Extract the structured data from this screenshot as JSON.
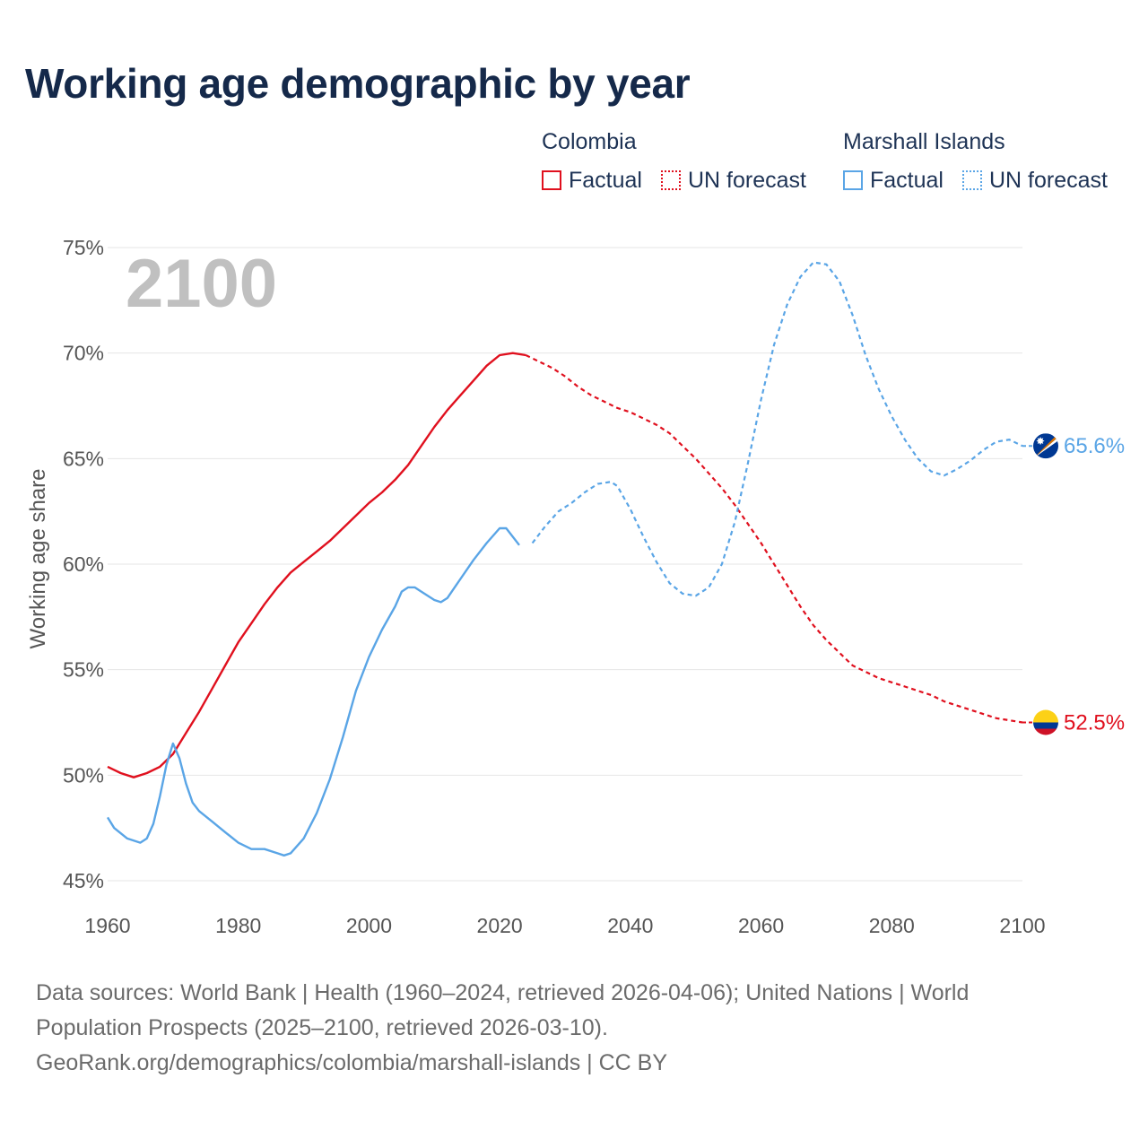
{
  "title": "Working age demographic by year",
  "legend": {
    "groups": [
      {
        "name": "Colombia",
        "factual": "Factual",
        "forecast": "UN forecast"
      },
      {
        "name": "Marshall Islands",
        "factual": "Factual",
        "forecast": "UN forecast"
      }
    ]
  },
  "colors": {
    "colombia": "#e0101e",
    "marshall": "#5aa5e6",
    "grid": "#e6e6e6"
  },
  "footer": {
    "line1": "Data sources: World Bank | Health (1960–2024, retrieved 2026-04-06); United Nations | World",
    "line2": "Population Prospects (2025–2100, retrieved 2026-03-10).",
    "line3": "GeoRank.org/demographics/colombia/marshall-islands | CC BY"
  },
  "chart_data": {
    "type": "line",
    "title": "Working age demographic by year",
    "current_year_label": "2100",
    "xlabel": "",
    "ylabel": "Working age share",
    "xlim": [
      1960,
      2100
    ],
    "ylim": [
      45,
      75
    ],
    "x_ticks": [
      1960,
      1980,
      2000,
      2020,
      2040,
      2060,
      2080,
      2100
    ],
    "y_ticks": [
      45,
      50,
      55,
      60,
      65,
      70,
      75
    ],
    "y_tick_labels": [
      "45%",
      "50%",
      "55%",
      "60%",
      "65%",
      "70%",
      "75%"
    ],
    "forecast_start": 2024,
    "series": [
      {
        "name": "Colombia",
        "end_label": "52.5%",
        "flag": "colombia-flag",
        "points": [
          [
            1960,
            50.4
          ],
          [
            1962,
            50.1
          ],
          [
            1964,
            49.9
          ],
          [
            1966,
            50.1
          ],
          [
            1968,
            50.4
          ],
          [
            1970,
            51.0
          ],
          [
            1972,
            52.0
          ],
          [
            1974,
            53.0
          ],
          [
            1976,
            54.1
          ],
          [
            1978,
            55.2
          ],
          [
            1980,
            56.3
          ],
          [
            1982,
            57.2
          ],
          [
            1984,
            58.1
          ],
          [
            1986,
            58.9
          ],
          [
            1988,
            59.6
          ],
          [
            1990,
            60.1
          ],
          [
            1992,
            60.6
          ],
          [
            1994,
            61.1
          ],
          [
            1996,
            61.7
          ],
          [
            1998,
            62.3
          ],
          [
            2000,
            62.9
          ],
          [
            2002,
            63.4
          ],
          [
            2004,
            64.0
          ],
          [
            2006,
            64.7
          ],
          [
            2008,
            65.6
          ],
          [
            2010,
            66.5
          ],
          [
            2012,
            67.3
          ],
          [
            2014,
            68.0
          ],
          [
            2016,
            68.7
          ],
          [
            2018,
            69.4
          ],
          [
            2020,
            69.9
          ],
          [
            2022,
            70.0
          ],
          [
            2024,
            69.9
          ],
          [
            2026,
            69.6
          ],
          [
            2028,
            69.3
          ],
          [
            2030,
            68.9
          ],
          [
            2032,
            68.4
          ],
          [
            2034,
            68.0
          ],
          [
            2036,
            67.7
          ],
          [
            2038,
            67.4
          ],
          [
            2040,
            67.2
          ],
          [
            2042,
            66.9
          ],
          [
            2044,
            66.6
          ],
          [
            2046,
            66.2
          ],
          [
            2048,
            65.6
          ],
          [
            2050,
            65.0
          ],
          [
            2052,
            64.3
          ],
          [
            2054,
            63.6
          ],
          [
            2056,
            62.8
          ],
          [
            2058,
            61.9
          ],
          [
            2060,
            61.0
          ],
          [
            2062,
            60.0
          ],
          [
            2064,
            59.0
          ],
          [
            2066,
            58.0
          ],
          [
            2068,
            57.1
          ],
          [
            2070,
            56.4
          ],
          [
            2072,
            55.8
          ],
          [
            2074,
            55.2
          ],
          [
            2076,
            54.9
          ],
          [
            2078,
            54.6
          ],
          [
            2080,
            54.4
          ],
          [
            2082,
            54.2
          ],
          [
            2084,
            54.0
          ],
          [
            2086,
            53.8
          ],
          [
            2088,
            53.5
          ],
          [
            2090,
            53.3
          ],
          [
            2092,
            53.1
          ],
          [
            2094,
            52.9
          ],
          [
            2096,
            52.7
          ],
          [
            2098,
            52.6
          ],
          [
            2100,
            52.5
          ]
        ]
      },
      {
        "name": "Marshall Islands",
        "end_label": "65.6%",
        "flag": "marshall-islands-flag",
        "points": [
          [
            1960,
            48.0
          ],
          [
            1961,
            47.5
          ],
          [
            1963,
            47.0
          ],
          [
            1965,
            46.8
          ],
          [
            1966,
            47.0
          ],
          [
            1967,
            47.7
          ],
          [
            1968,
            49.0
          ],
          [
            1969,
            50.5
          ],
          [
            1970,
            51.5
          ],
          [
            1971,
            50.8
          ],
          [
            1972,
            49.6
          ],
          [
            1973,
            48.7
          ],
          [
            1974,
            48.3
          ],
          [
            1976,
            47.8
          ],
          [
            1978,
            47.3
          ],
          [
            1980,
            46.8
          ],
          [
            1982,
            46.5
          ],
          [
            1984,
            46.5
          ],
          [
            1986,
            46.3
          ],
          [
            1987,
            46.2
          ],
          [
            1988,
            46.3
          ],
          [
            1990,
            47.0
          ],
          [
            1992,
            48.2
          ],
          [
            1994,
            49.8
          ],
          [
            1996,
            51.8
          ],
          [
            1998,
            54.0
          ],
          [
            2000,
            55.6
          ],
          [
            2002,
            56.9
          ],
          [
            2004,
            58.0
          ],
          [
            2005,
            58.7
          ],
          [
            2006,
            58.9
          ],
          [
            2007,
            58.9
          ],
          [
            2008,
            58.7
          ],
          [
            2010,
            58.3
          ],
          [
            2011,
            58.2
          ],
          [
            2012,
            58.4
          ],
          [
            2014,
            59.3
          ],
          [
            2016,
            60.2
          ],
          [
            2018,
            61.0
          ],
          [
            2020,
            61.7
          ],
          [
            2021,
            61.7
          ],
          [
            2023,
            60.9
          ],
          [
            2025,
            61.0
          ],
          [
            2027,
            61.8
          ],
          [
            2029,
            62.5
          ],
          [
            2031,
            62.9
          ],
          [
            2033,
            63.4
          ],
          [
            2035,
            63.8
          ],
          [
            2037,
            63.9
          ],
          [
            2038,
            63.7
          ],
          [
            2040,
            62.6
          ],
          [
            2042,
            61.3
          ],
          [
            2044,
            60.1
          ],
          [
            2046,
            59.1
          ],
          [
            2048,
            58.6
          ],
          [
            2050,
            58.5
          ],
          [
            2052,
            58.9
          ],
          [
            2054,
            60.0
          ],
          [
            2056,
            62.0
          ],
          [
            2058,
            64.8
          ],
          [
            2060,
            67.8
          ],
          [
            2062,
            70.4
          ],
          [
            2064,
            72.3
          ],
          [
            2066,
            73.6
          ],
          [
            2068,
            74.3
          ],
          [
            2070,
            74.2
          ],
          [
            2072,
            73.4
          ],
          [
            2074,
            71.8
          ],
          [
            2076,
            69.9
          ],
          [
            2078,
            68.3
          ],
          [
            2080,
            67.0
          ],
          [
            2082,
            65.9
          ],
          [
            2084,
            65.0
          ],
          [
            2086,
            64.4
          ],
          [
            2088,
            64.2
          ],
          [
            2090,
            64.5
          ],
          [
            2092,
            64.9
          ],
          [
            2094,
            65.4
          ],
          [
            2096,
            65.8
          ],
          [
            2098,
            65.9
          ],
          [
            2100,
            65.6
          ]
        ]
      }
    ]
  }
}
